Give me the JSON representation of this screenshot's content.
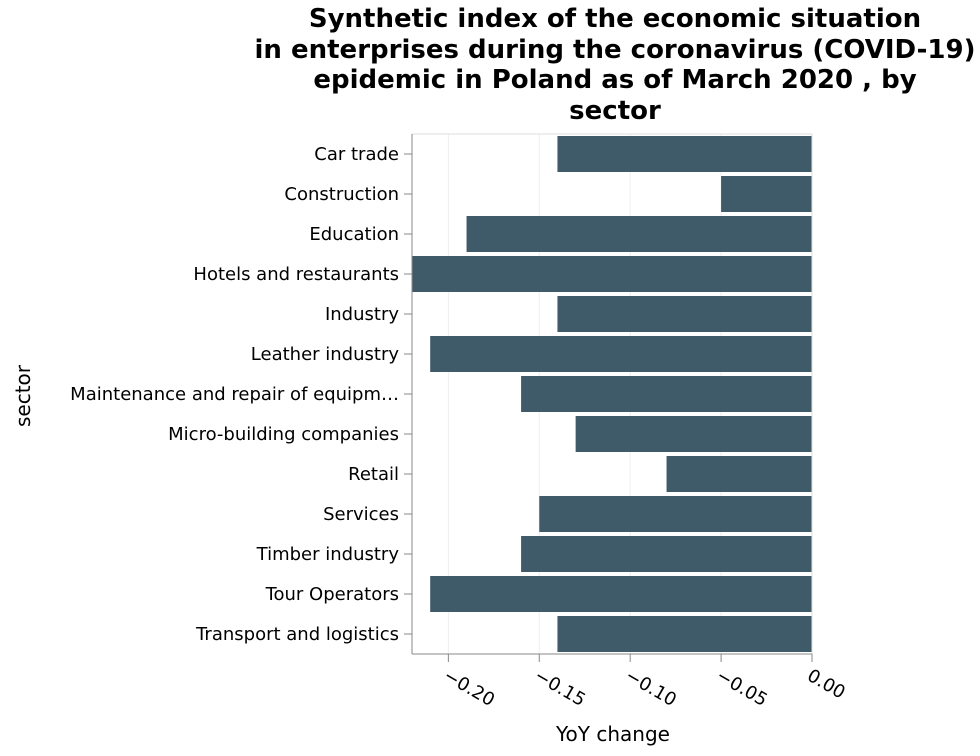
{
  "chart_data": {
    "type": "bar",
    "orientation": "horizontal",
    "title_lines": [
      "Synthetic index of the economic situation",
      "in enterprises during the coronavirus (COVID-19)",
      "epidemic in Poland as of March 2020 , by",
      "sector"
    ],
    "xlabel": "YoY change",
    "ylabel": "sector",
    "categories": [
      "Car trade",
      "Construction",
      "Education",
      "Hotels and restaurants",
      "Industry",
      "Leather industry",
      "Maintenance and repair of equipm…",
      "Micro-building companies",
      "Retail",
      "Services",
      "Timber industry",
      "Tour Operators",
      "Transport and logistics"
    ],
    "values": [
      -0.14,
      -0.05,
      -0.19,
      -0.22,
      -0.14,
      -0.21,
      -0.16,
      -0.13,
      -0.08,
      -0.15,
      -0.16,
      -0.21,
      -0.14
    ],
    "xlim": [
      -0.22,
      0.0
    ],
    "xticks": [
      -0.2,
      -0.15,
      -0.1,
      -0.05,
      0.0
    ],
    "xtick_labels": [
      "−0.20",
      "−0.15",
      "−0.10",
      "−0.05",
      "0.00"
    ],
    "grid": true,
    "bar_color": "#3f5a69"
  }
}
